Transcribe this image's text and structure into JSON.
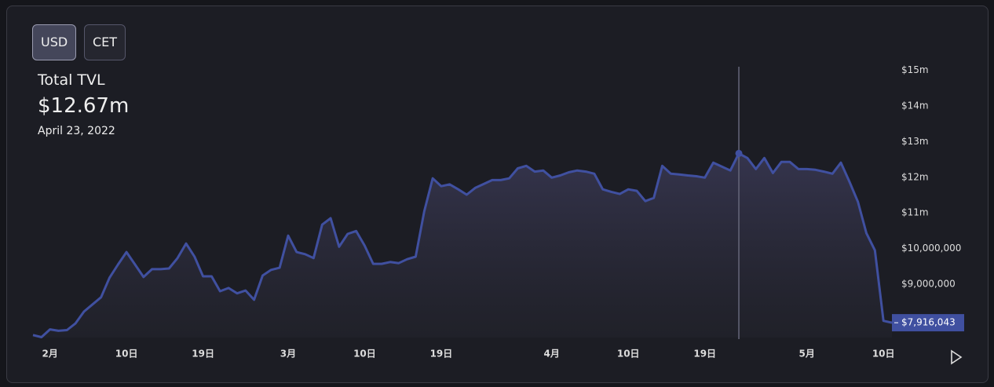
{
  "buttons": [
    "USD",
    "CET"
  ],
  "chart_data": {
    "type": "area",
    "title": "Total TVL",
    "headline": "$12.67m",
    "subtitle": "April 23, 2022",
    "color": "#4050a0",
    "cursor_x": "04-23",
    "last_value_label": "$7,916,043",
    "x": [
      "01-30",
      "01-31",
      "02-01",
      "02-02",
      "02-03",
      "02-04",
      "02-05",
      "02-06",
      "02-07",
      "02-08",
      "02-09",
      "02-10",
      "02-11",
      "02-12",
      "02-13",
      "02-14",
      "02-15",
      "02-16",
      "02-17",
      "02-18",
      "02-19",
      "02-20",
      "02-21",
      "02-22",
      "02-23",
      "02-24",
      "02-25",
      "02-26",
      "02-27",
      "02-28",
      "03-01",
      "03-02",
      "03-03",
      "03-04",
      "03-05",
      "03-06",
      "03-07",
      "03-08",
      "03-09",
      "03-10",
      "03-11",
      "03-12",
      "03-13",
      "03-14",
      "03-15",
      "03-16",
      "03-17",
      "03-18",
      "03-19",
      "03-20",
      "03-21",
      "03-22",
      "03-23",
      "03-24",
      "03-25",
      "03-26",
      "03-27",
      "03-28",
      "03-29",
      "03-30",
      "03-31",
      "04-01",
      "04-02",
      "04-03",
      "04-04",
      "04-05",
      "04-06",
      "04-07",
      "04-08",
      "04-09",
      "04-10",
      "04-11",
      "04-12",
      "04-13",
      "04-14",
      "04-15",
      "04-16",
      "04-17",
      "04-18",
      "04-19",
      "04-20",
      "04-21",
      "04-22",
      "04-23",
      "04-24",
      "04-25",
      "04-26",
      "04-27",
      "04-28",
      "04-29",
      "04-30",
      "05-01",
      "05-02",
      "05-03",
      "05-04",
      "05-05",
      "05-06",
      "05-07",
      "05-08",
      "05-09",
      "05-10",
      "05-11"
    ],
    "values": [
      7570000,
      7510000,
      7730000,
      7690000,
      7710000,
      7900000,
      8230000,
      8430000,
      8630000,
      9180000,
      9550000,
      9900000,
      9550000,
      9200000,
      9420000,
      9420000,
      9440000,
      9730000,
      10140000,
      9770000,
      9220000,
      9220000,
      8800000,
      8890000,
      8740000,
      8820000,
      8560000,
      9240000,
      9400000,
      9460000,
      10360000,
      9900000,
      9840000,
      9730000,
      10670000,
      10850000,
      10050000,
      10410000,
      10490000,
      10080000,
      9570000,
      9570000,
      9620000,
      9590000,
      9700000,
      9770000,
      11040000,
      11970000,
      11750000,
      11800000,
      11660000,
      11510000,
      11700000,
      11810000,
      11920000,
      11920000,
      11970000,
      12250000,
      12320000,
      12160000,
      12190000,
      11990000,
      12050000,
      12140000,
      12190000,
      12160000,
      12100000,
      11660000,
      11590000,
      11530000,
      11660000,
      11620000,
      11330000,
      11420000,
      12320000,
      12100000,
      12080000,
      12050000,
      12030000,
      11990000,
      12410000,
      12300000,
      12190000,
      12670000,
      12540000,
      12230000,
      12540000,
      12120000,
      12430000,
      12430000,
      12230000,
      12230000,
      12210000,
      12160000,
      12100000,
      12410000,
      11880000,
      11310000,
      10430000,
      9950000,
      7970000,
      7916043
    ],
    "xlim": [
      "01-30",
      "05-11"
    ],
    "xticks": [
      {
        "value": "02-01",
        "label": "2月"
      },
      {
        "value": "02-10",
        "label": "10日"
      },
      {
        "value": "02-19",
        "label": "19日"
      },
      {
        "value": "03-01",
        "label": "3月"
      },
      {
        "value": "03-10",
        "label": "10日"
      },
      {
        "value": "03-19",
        "label": "19日"
      },
      {
        "value": "04-01",
        "label": "4月"
      },
      {
        "value": "04-10",
        "label": "10日"
      },
      {
        "value": "04-19",
        "label": "19日"
      },
      {
        "value": "05-01",
        "label": "5月"
      },
      {
        "value": "05-10",
        "label": "10日"
      }
    ],
    "ylim": [
      7500000,
      15500000
    ],
    "yticks": [
      {
        "value": 9000000,
        "label": "$9,000,000"
      },
      {
        "value": 10000000,
        "label": "$10,000,000"
      },
      {
        "value": 11000000,
        "label": "$11m"
      },
      {
        "value": 12000000,
        "label": "$12m"
      },
      {
        "value": 13000000,
        "label": "$13m"
      },
      {
        "value": 14000000,
        "label": "$14m"
      },
      {
        "value": 15000000,
        "label": "$15m"
      }
    ]
  }
}
